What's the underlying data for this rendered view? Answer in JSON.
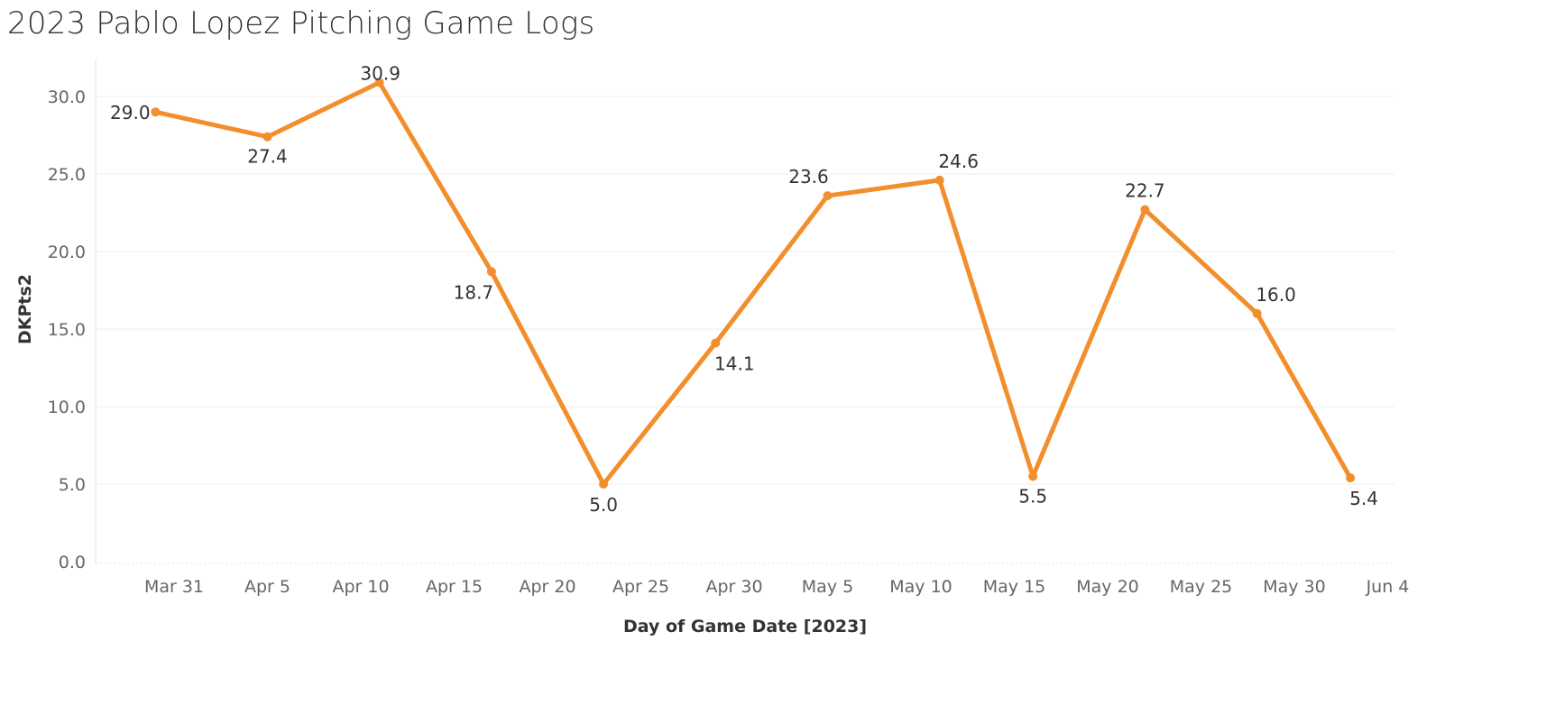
{
  "title": "2023 Pablo Lopez Pitching Game Logs",
  "chart_data": {
    "type": "line",
    "title": "2023 Pablo Lopez Pitching Game Logs",
    "xlabel": "Day of Game Date [2023]",
    "ylabel": "DKPts2",
    "x_tick_labels": [
      "Mar 31",
      "Apr 5",
      "Apr 10",
      "Apr 15",
      "Apr 20",
      "Apr 25",
      "Apr 30",
      "May 5",
      "May 10",
      "May 15",
      "May 20",
      "May 25",
      "May 30",
      "Jun 4"
    ],
    "y_tick_labels": [
      "0.0",
      "5.0",
      "10.0",
      "15.0",
      "20.0",
      "25.0",
      "30.0"
    ],
    "ylim": [
      0,
      32
    ],
    "xlim": [
      "2023-03-27",
      "2023-06-04"
    ],
    "grid": true,
    "line_color": "#F28E2B",
    "series": [
      {
        "x": [
          "2023-03-30",
          "2023-04-05",
          "2023-04-11",
          "2023-04-17",
          "2023-04-23",
          "2023-04-29",
          "2023-05-05",
          "2023-05-11",
          "2023-05-16",
          "2023-05-22",
          "2023-05-28",
          "2023-06-02"
        ],
        "values": [
          29.0,
          27.4,
          30.9,
          18.7,
          5.0,
          14.1,
          23.6,
          24.6,
          5.5,
          22.7,
          16.0,
          5.4
        ],
        "labels": [
          "29.0",
          "27.4",
          "30.9",
          "18.7",
          "5.0",
          "14.1",
          "23.6",
          "24.6",
          "5.5",
          "22.7",
          "16.0",
          "5.4"
        ]
      }
    ]
  }
}
